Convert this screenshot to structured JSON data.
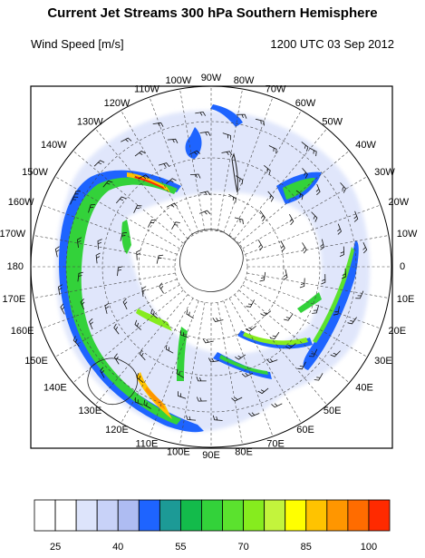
{
  "title": "Current Jet Streams 300 hPa Southern Hemisphere",
  "subtitle_left": "Wind Speed [m/s]",
  "subtitle_right": "1200 UTC 03 Sep 2012",
  "longitude_labels": [
    {
      "text": "0",
      "deg": 0
    },
    {
      "text": "10E",
      "deg": 10
    },
    {
      "text": "20E",
      "deg": 20
    },
    {
      "text": "30E",
      "deg": 30
    },
    {
      "text": "40E",
      "deg": 40
    },
    {
      "text": "50E",
      "deg": 50
    },
    {
      "text": "60E",
      "deg": 60
    },
    {
      "text": "70E",
      "deg": 70
    },
    {
      "text": "80E",
      "deg": 80
    },
    {
      "text": "90E",
      "deg": 90
    },
    {
      "text": "100E",
      "deg": 100
    },
    {
      "text": "110E",
      "deg": 110
    },
    {
      "text": "120E",
      "deg": 120
    },
    {
      "text": "130E",
      "deg": 130
    },
    {
      "text": "140E",
      "deg": 140
    },
    {
      "text": "150E",
      "deg": 150
    },
    {
      "text": "160E",
      "deg": 160
    },
    {
      "text": "170E",
      "deg": 170
    },
    {
      "text": "180",
      "deg": 180
    },
    {
      "text": "170W",
      "deg": 190
    },
    {
      "text": "160W",
      "deg": 200
    },
    {
      "text": "150W",
      "deg": 210
    },
    {
      "text": "140W",
      "deg": 220
    },
    {
      "text": "130W",
      "deg": 230
    },
    {
      "text": "120W",
      "deg": 240
    },
    {
      "text": "110W",
      "deg": 250
    },
    {
      "text": "100W",
      "deg": 260
    },
    {
      "text": "90W",
      "deg": 270
    },
    {
      "text": "80W",
      "deg": 280
    },
    {
      "text": "70W",
      "deg": 290
    },
    {
      "text": "60W",
      "deg": 300
    },
    {
      "text": "50W",
      "deg": 310
    },
    {
      "text": "40W",
      "deg": 320
    },
    {
      "text": "30W",
      "deg": 330
    },
    {
      "text": "20W",
      "deg": 340
    },
    {
      "text": "10W",
      "deg": 350
    }
  ],
  "colorbar": {
    "colors": [
      "#ffffff",
      "#ffffff",
      "#dde4fb",
      "#c8d2f8",
      "#aebcf2",
      "#1e64ff",
      "#1c9a96",
      "#13bb4b",
      "#33d23a",
      "#5be22e",
      "#86ec1e",
      "#c3f43c",
      "#ffff00",
      "#ffc300",
      "#ff9600",
      "#ff6c00",
      "#ff2a00"
    ],
    "ticks": [
      {
        "label": "25",
        "index": 1
      },
      {
        "label": "40",
        "index": 4
      },
      {
        "label": "55",
        "index": 7
      },
      {
        "label": "70",
        "index": 10
      },
      {
        "label": "85",
        "index": 13
      },
      {
        "label": "100",
        "index": 16
      }
    ]
  }
}
